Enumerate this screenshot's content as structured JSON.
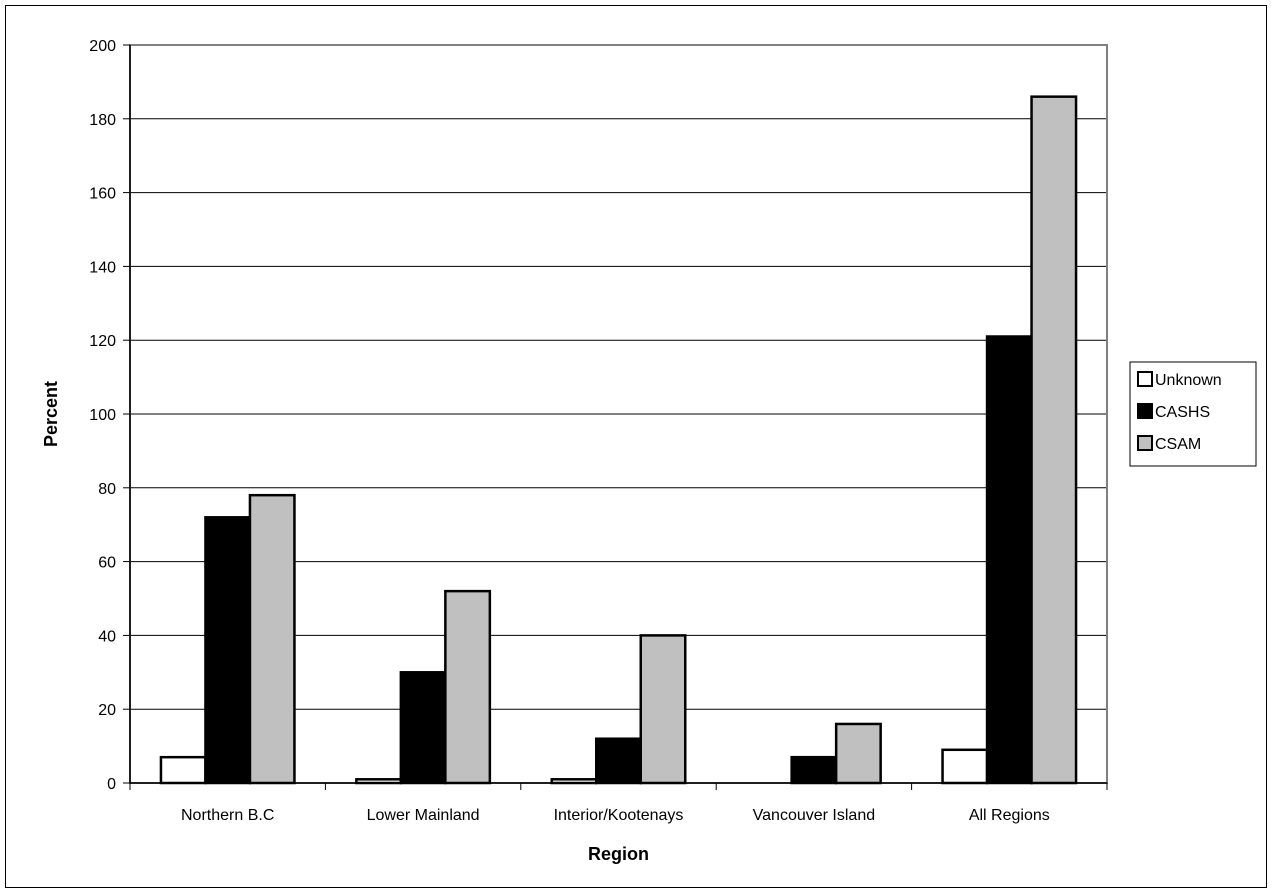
{
  "chart_data": {
    "type": "bar",
    "xlabel": "Region",
    "ylabel": "Percent",
    "ylim": [
      0,
      200
    ],
    "ytick_step": 20,
    "grid": true,
    "legend_position": "right",
    "categories": [
      "Northern B.C",
      "Lower Mainland",
      "Interior/Kootenays",
      "Vancouver Island",
      "All Regions"
    ],
    "series": [
      {
        "name": "Unknown",
        "color": "#ffffff",
        "values": [
          7,
          1,
          1,
          0,
          9
        ]
      },
      {
        "name": "CASHS",
        "color": "#000000",
        "values": [
          72,
          30,
          12,
          7,
          121
        ]
      },
      {
        "name": "CSAM",
        "color": "#c0c0c0",
        "values": [
          78,
          52,
          40,
          16,
          186
        ]
      }
    ]
  }
}
